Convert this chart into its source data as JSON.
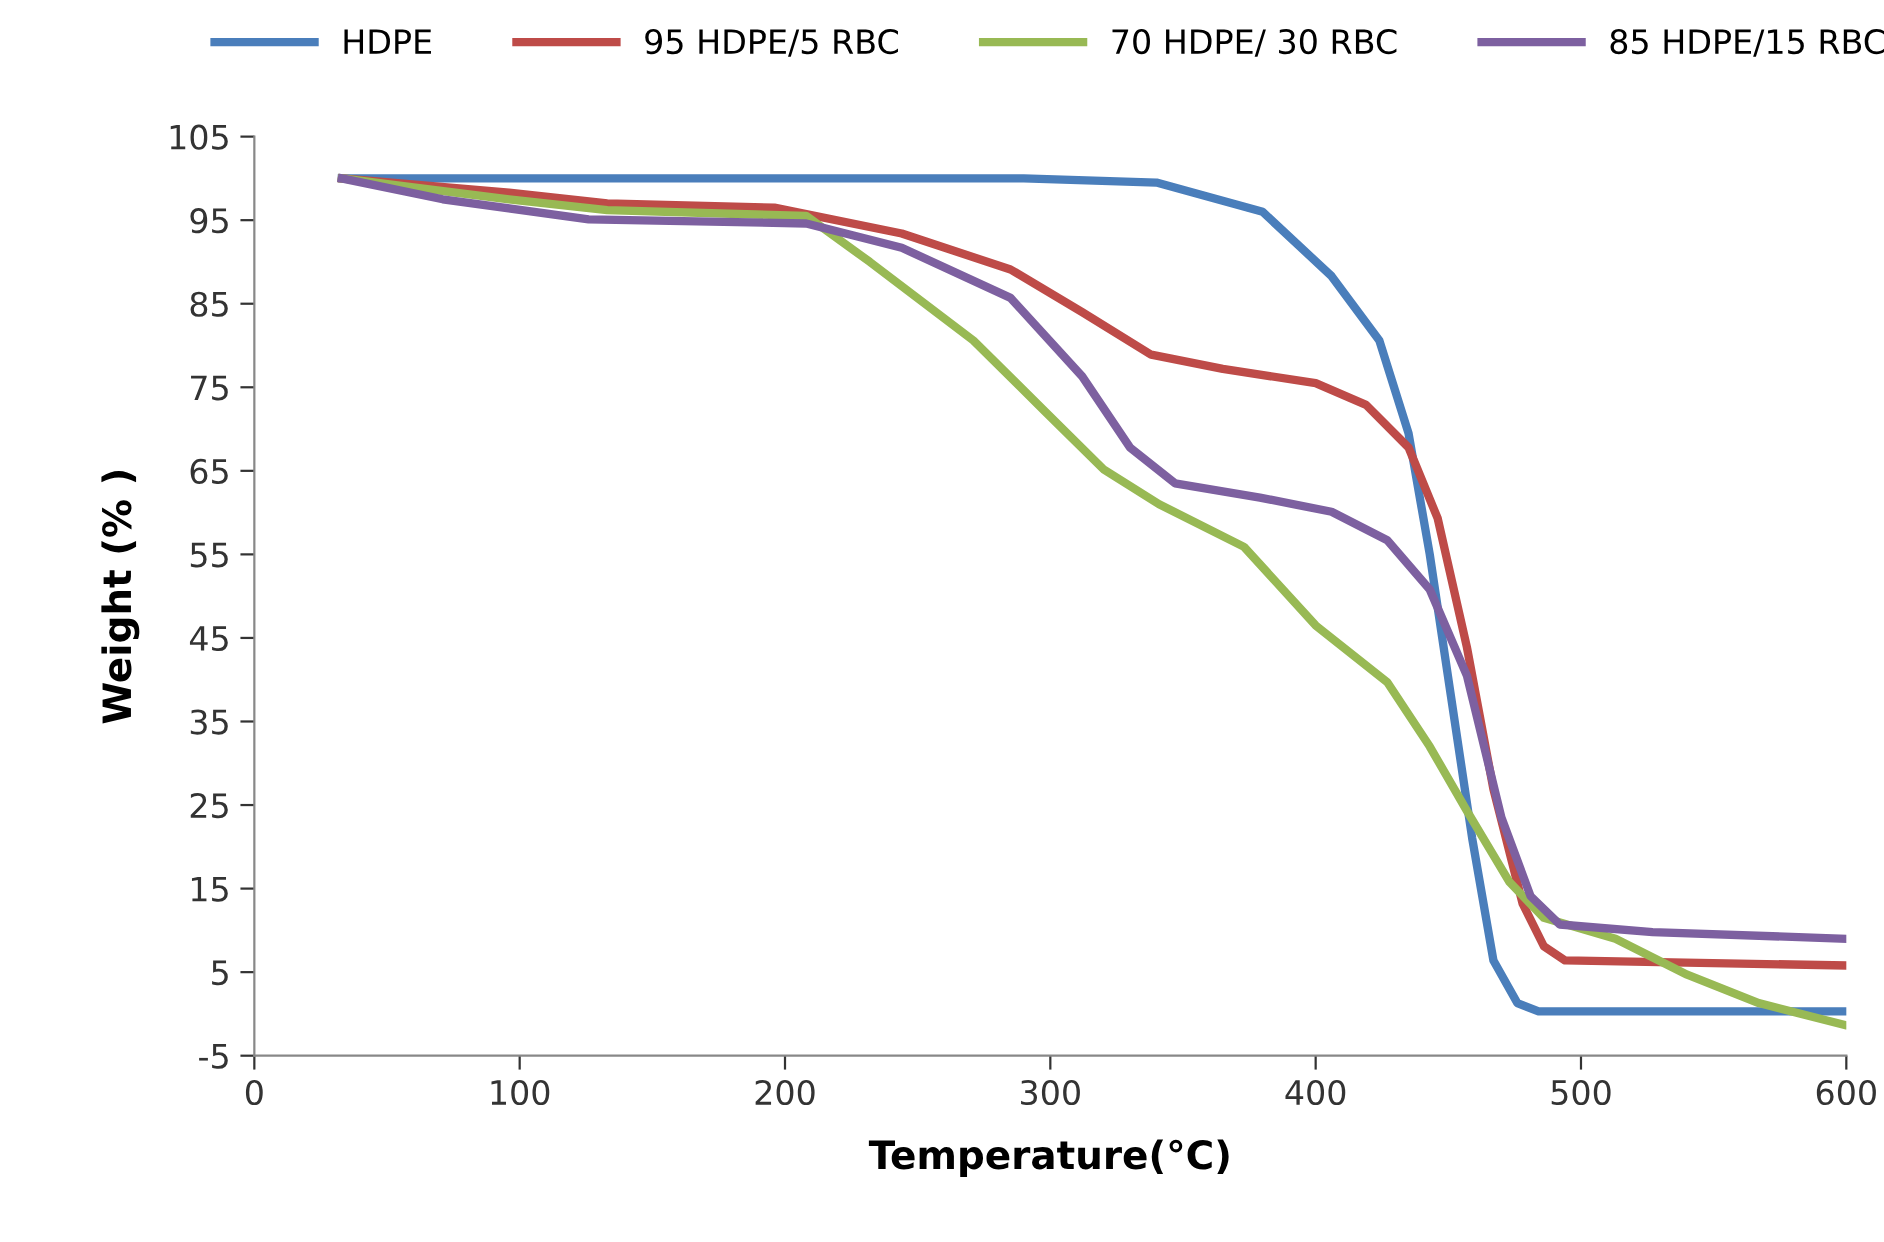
{
  "chart_data": {
    "type": "line",
    "xlabel": "Temperature(°C)",
    "ylabel": "Weight (% )",
    "xlim": [
      0,
      600
    ],
    "xticks": [
      0,
      100,
      200,
      300,
      400,
      500,
      600
    ],
    "ylim": [
      -5,
      105
    ],
    "yticks": [
      -5,
      5,
      15,
      25,
      35,
      45,
      55,
      65,
      75,
      85,
      95,
      105
    ],
    "grid": false,
    "legend": "top",
    "marker": "none",
    "line_style": "solid",
    "series": [
      {
        "name": "HDPE",
        "color": "#4a7ebb",
        "x": [
          33,
          290,
          340,
          380,
          406,
          424,
          435,
          443,
          451,
          459,
          467,
          476,
          484,
          600
        ],
        "values": [
          100,
          100,
          99.5,
          96,
          88.3,
          80.6,
          69.5,
          55,
          38,
          21,
          6.4,
          1.3,
          0.3,
          0.3
        ]
      },
      {
        "name": "95 HDPE/5 RBC",
        "color": "#be4b48",
        "x": [
          33,
          96,
          133,
          196,
          244,
          285,
          312,
          338,
          365,
          400,
          419,
          435,
          446,
          457,
          467,
          478,
          486,
          494,
          599
        ],
        "values": [
          100,
          98.3,
          97,
          96.5,
          93.4,
          89.1,
          84,
          78.9,
          77.2,
          75.5,
          72.9,
          67.8,
          59.3,
          43.9,
          26.9,
          13.2,
          8.1,
          6.4,
          5.8
        ]
      },
      {
        "name": "70 HDPE/ 30 RBC",
        "color": "#98b954",
        "x": [
          33,
          96,
          133,
          208,
          232,
          271,
          298,
          320,
          341,
          373,
          400,
          427,
          443,
          457,
          473,
          486,
          513,
          540,
          567,
          599
        ],
        "values": [
          100,
          97.5,
          96.2,
          95.5,
          90,
          80.6,
          72.1,
          65.2,
          61,
          55.9,
          46.5,
          39.7,
          32,
          24.3,
          15.8,
          11.5,
          9,
          4.7,
          1.3,
          -1.3
        ]
      },
      {
        "name": "85 HDPE/15 RBC",
        "color": "#7d60a0",
        "x": [
          33,
          71,
          126,
          208,
          244,
          285,
          312,
          330,
          347,
          379,
          406,
          427,
          443,
          457,
          470,
          481,
          492,
          527,
          599
        ],
        "values": [
          100,
          97.5,
          95.1,
          94.6,
          91.7,
          85.7,
          76.3,
          67.8,
          63.5,
          61.8,
          60.1,
          56.7,
          50.8,
          40.5,
          23.5,
          14.1,
          10.7,
          9.8,
          9
        ]
      }
    ]
  }
}
